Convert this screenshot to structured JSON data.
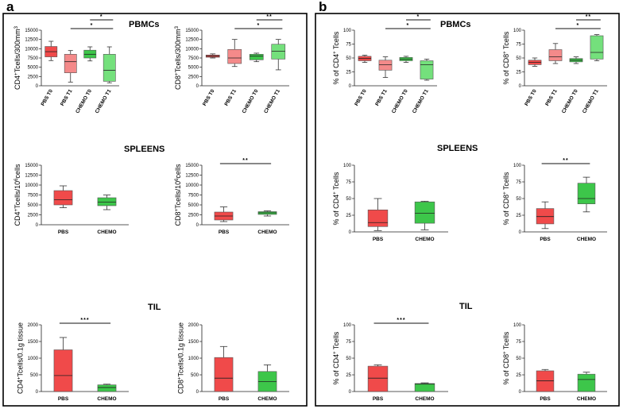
{
  "panels": [
    {
      "label": "a",
      "sections": [
        "PBMCs",
        "SPLEENS",
        "TIL"
      ]
    },
    {
      "label": "b",
      "sections": [
        "PBMCs",
        "SPLEENS",
        "TIL"
      ]
    }
  ],
  "colors": {
    "red": "#f04a4a",
    "pink": "#f48a8a",
    "green": "#3dc64a",
    "light_green": "#74e07c",
    "frame": "#000000"
  },
  "chart_data": [
    {
      "id": "a-pbmc-cd4",
      "panel": "a",
      "section": "PBMCs",
      "type": "box",
      "ylabel": "CD4+Tcells/300mm3",
      "ylim": [
        0,
        15000
      ],
      "yticks": [
        0,
        2500,
        5000,
        7500,
        10000,
        12500,
        15000
      ],
      "categories": [
        "PBS T0",
        "PBS T1",
        "CHEMO T0",
        "CHEMO T1"
      ],
      "rotated_labels": true,
      "boxes": [
        {
          "name": "PBS T0",
          "color": "red",
          "min": 6800,
          "q1": 7800,
          "median": 9200,
          "q3": 10600,
          "max": 12000
        },
        {
          "name": "PBS T1",
          "color": "pink",
          "min": 1000,
          "q1": 3500,
          "median": 6500,
          "q3": 8500,
          "max": 9500
        },
        {
          "name": "CHEMO T0",
          "color": "green",
          "min": 6700,
          "q1": 7500,
          "median": 8500,
          "q3": 9600,
          "max": 10500
        },
        {
          "name": "CHEMO T1",
          "color": "light_green",
          "min": 800,
          "q1": 1200,
          "median": 4200,
          "q3": 8500,
          "max": 10500
        }
      ],
      "significance": [
        {
          "from": 2,
          "to": 3,
          "label": "*"
        },
        {
          "from": 1,
          "to": 3,
          "label": "*"
        }
      ]
    },
    {
      "id": "a-pbmc-cd8",
      "panel": "a",
      "section": "PBMCs",
      "type": "box",
      "ylabel": "CD8+Tcells/300mm3",
      "ylim": [
        0,
        15000
      ],
      "yticks": [
        0,
        2500,
        5000,
        7500,
        10000,
        12500,
        15000
      ],
      "categories": [
        "PBS T0",
        "PBS T1",
        "CHEMO T0",
        "CHEMO T1"
      ],
      "rotated_labels": true,
      "boxes": [
        {
          "name": "PBS T0",
          "color": "red",
          "min": 7500,
          "q1": 7700,
          "median": 8000,
          "q3": 8300,
          "max": 8600
        },
        {
          "name": "PBS T1",
          "color": "pink",
          "min": 5200,
          "q1": 6000,
          "median": 7500,
          "q3": 9800,
          "max": 12500
        },
        {
          "name": "CHEMO T0",
          "color": "green",
          "min": 6500,
          "q1": 7000,
          "median": 8000,
          "q3": 8500,
          "max": 8800
        },
        {
          "name": "CHEMO T1",
          "color": "light_green",
          "min": 4300,
          "q1": 7200,
          "median": 9300,
          "q3": 11200,
          "max": 12500
        }
      ],
      "significance": [
        {
          "from": 2,
          "to": 3,
          "label": "**"
        },
        {
          "from": 1,
          "to": 3,
          "label": "*"
        }
      ]
    },
    {
      "id": "a-spleen-cd4",
      "panel": "a",
      "section": "SPLEENS",
      "type": "box",
      "ylabel": "CD4+Tcells/10^6cells",
      "ylim": [
        0,
        15000
      ],
      "yticks": [
        0,
        2500,
        5000,
        7500,
        10000,
        12500,
        15000
      ],
      "categories": [
        "PBS",
        "CHEMO"
      ],
      "rotated_labels": false,
      "boxes": [
        {
          "name": "PBS",
          "color": "red",
          "min": 4300,
          "q1": 5000,
          "median": 6300,
          "q3": 8600,
          "max": 9800
        },
        {
          "name": "CHEMO",
          "color": "green",
          "min": 3800,
          "q1": 4800,
          "median": 5700,
          "q3": 6800,
          "max": 7500
        }
      ],
      "significance": []
    },
    {
      "id": "a-spleen-cd8",
      "panel": "a",
      "section": "SPLEENS",
      "type": "box",
      "ylabel": "CD8+Tcells/10^6cells",
      "ylim": [
        0,
        15000
      ],
      "yticks": [
        0,
        2500,
        5000,
        7500,
        10000,
        12500,
        15000
      ],
      "categories": [
        "PBS",
        "CHEMO"
      ],
      "rotated_labels": false,
      "boxes": [
        {
          "name": "PBS",
          "color": "red",
          "min": 800,
          "q1": 1200,
          "median": 2200,
          "q3": 3200,
          "max": 4500
        },
        {
          "name": "CHEMO",
          "color": "green",
          "min": 2200,
          "q1": 2600,
          "median": 3000,
          "q3": 3300,
          "max": 3500
        }
      ],
      "significance": [
        {
          "from": 0,
          "to": 1,
          "label": "**"
        }
      ]
    },
    {
      "id": "a-til-cd4",
      "panel": "a",
      "section": "TIL",
      "type": "bar",
      "ylabel": "CD4+Tcells/0.1g tissue",
      "ylim": [
        0,
        2000
      ],
      "yticks": [
        0,
        500,
        1000,
        1500,
        2000
      ],
      "categories": [
        "PBS",
        "CHEMO"
      ],
      "rotated_labels": false,
      "boxes": [
        {
          "name": "PBS",
          "color": "red",
          "min": 0,
          "q1": 0,
          "median": 480,
          "q3": 1250,
          "max": 1620
        },
        {
          "name": "CHEMO",
          "color": "green",
          "min": 0,
          "q1": 0,
          "median": 120,
          "q3": 200,
          "max": 220
        }
      ],
      "significance": [
        {
          "from": 0,
          "to": 1,
          "label": "***"
        }
      ]
    },
    {
      "id": "a-til-cd8",
      "panel": "a",
      "section": "TIL",
      "type": "bar",
      "ylabel": "CD8+Tcells/0.1g tissue",
      "ylim": [
        0,
        2000
      ],
      "yticks": [
        0,
        500,
        1000,
        1500,
        2000
      ],
      "categories": [
        "PBS",
        "CHEMO"
      ],
      "rotated_labels": false,
      "boxes": [
        {
          "name": "PBS",
          "color": "red",
          "min": 0,
          "q1": 0,
          "median": 400,
          "q3": 1020,
          "max": 1350
        },
        {
          "name": "CHEMO",
          "color": "green",
          "min": 0,
          "q1": 0,
          "median": 300,
          "q3": 600,
          "max": 800
        }
      ],
      "significance": []
    },
    {
      "id": "b-pbmc-cd4",
      "panel": "b",
      "section": "PBMCs",
      "type": "box",
      "ylabel": "% of CD4+ Tcells",
      "ylim": [
        0,
        100
      ],
      "yticks": [
        0,
        25,
        50,
        75,
        100
      ],
      "categories": [
        "PBS T0",
        "PBS T1",
        "CHEMO T0",
        "CHEMO T1"
      ],
      "rotated_labels": true,
      "boxes": [
        {
          "name": "PBS T0",
          "color": "red",
          "min": 42,
          "q1": 45,
          "median": 49,
          "q3": 53,
          "max": 55
        },
        {
          "name": "PBS T1",
          "color": "pink",
          "min": 15,
          "q1": 28,
          "median": 38,
          "q3": 46,
          "max": 52
        },
        {
          "name": "CHEMO T0",
          "color": "green",
          "min": 42,
          "q1": 45,
          "median": 48,
          "q3": 51,
          "max": 53
        },
        {
          "name": "CHEMO T1",
          "color": "light_green",
          "min": 10,
          "q1": 12,
          "median": 38,
          "q3": 45,
          "max": 48
        }
      ],
      "significance": [
        {
          "from": 2,
          "to": 3,
          "label": "*"
        },
        {
          "from": 1,
          "to": 3,
          "label": "*"
        }
      ]
    },
    {
      "id": "b-pbmc-cd8",
      "panel": "b",
      "section": "PBMCs",
      "type": "box",
      "ylabel": "% of CD8+ Tcells",
      "ylim": [
        0,
        100
      ],
      "yticks": [
        0,
        25,
        50,
        75,
        100
      ],
      "categories": [
        "PBS T0",
        "PBS T1",
        "CHEMO T0",
        "CHEMO T1"
      ],
      "rotated_labels": true,
      "boxes": [
        {
          "name": "PBS T0",
          "color": "red",
          "min": 35,
          "q1": 38,
          "median": 42,
          "q3": 46,
          "max": 50
        },
        {
          "name": "PBS T1",
          "color": "pink",
          "min": 40,
          "q1": 45,
          "median": 52,
          "q3": 65,
          "max": 76
        },
        {
          "name": "CHEMO T0",
          "color": "green",
          "min": 40,
          "q1": 43,
          "median": 46,
          "q3": 49,
          "max": 52
        },
        {
          "name": "CHEMO T1",
          "color": "light_green",
          "min": 45,
          "q1": 48,
          "median": 60,
          "q3": 90,
          "max": 92
        }
      ],
      "significance": [
        {
          "from": 2,
          "to": 3,
          "label": "**"
        },
        {
          "from": 1,
          "to": 3,
          "label": "*"
        }
      ]
    },
    {
      "id": "b-spleen-cd4",
      "panel": "b",
      "section": "SPLEENS",
      "type": "box",
      "ylabel": "% of CD4+ Tcells",
      "ylim": [
        0,
        100
      ],
      "yticks": [
        0,
        25,
        50,
        75,
        100
      ],
      "categories": [
        "PBS",
        "CHEMO"
      ],
      "rotated_labels": false,
      "boxes": [
        {
          "name": "PBS",
          "color": "red",
          "min": 2,
          "q1": 8,
          "median": 14,
          "q3": 33,
          "max": 50
        },
        {
          "name": "CHEMO",
          "color": "green",
          "min": 3,
          "q1": 13,
          "median": 28,
          "q3": 45,
          "max": 46
        }
      ],
      "significance": []
    },
    {
      "id": "b-spleen-cd8",
      "panel": "b",
      "section": "SPLEENS",
      "type": "box",
      "ylabel": "% of CD8+ Tcells",
      "ylim": [
        0,
        100
      ],
      "yticks": [
        0,
        25,
        50,
        75,
        100
      ],
      "categories": [
        "PBS",
        "CHEMO"
      ],
      "rotated_labels": false,
      "boxes": [
        {
          "name": "PBS",
          "color": "red",
          "min": 5,
          "q1": 12,
          "median": 23,
          "q3": 35,
          "max": 45
        },
        {
          "name": "CHEMO",
          "color": "green",
          "min": 30,
          "q1": 42,
          "median": 50,
          "q3": 73,
          "max": 82
        }
      ],
      "significance": [
        {
          "from": 0,
          "to": 1,
          "label": "**"
        }
      ]
    },
    {
      "id": "b-til-cd4",
      "panel": "b",
      "section": "TIL",
      "type": "bar",
      "ylabel": "% of CD4+ Tcells",
      "ylim": [
        0,
        100
      ],
      "yticks": [
        0,
        25,
        50,
        75,
        100
      ],
      "categories": [
        "PBS",
        "CHEMO"
      ],
      "rotated_labels": false,
      "boxes": [
        {
          "name": "PBS",
          "color": "red",
          "min": 0,
          "q1": 0,
          "median": 20,
          "q3": 38,
          "max": 40
        },
        {
          "name": "CHEMO",
          "color": "green",
          "min": 0,
          "q1": 0,
          "median": 11,
          "q3": 12,
          "max": 13
        }
      ],
      "significance": [
        {
          "from": 0,
          "to": 1,
          "label": "***"
        }
      ]
    },
    {
      "id": "b-til-cd8",
      "panel": "b",
      "section": "TIL",
      "type": "bar",
      "ylabel": "% of CD8+ Tcells",
      "ylim": [
        0,
        100
      ],
      "yticks": [
        0,
        25,
        50,
        75,
        100
      ],
      "categories": [
        "PBS",
        "CHEMO"
      ],
      "rotated_labels": false,
      "boxes": [
        {
          "name": "PBS",
          "color": "red",
          "min": 0,
          "q1": 0,
          "median": 16,
          "q3": 31,
          "max": 33
        },
        {
          "name": "CHEMO",
          "color": "green",
          "min": 0,
          "q1": 0,
          "median": 18,
          "q3": 26,
          "max": 29
        }
      ],
      "significance": []
    }
  ]
}
